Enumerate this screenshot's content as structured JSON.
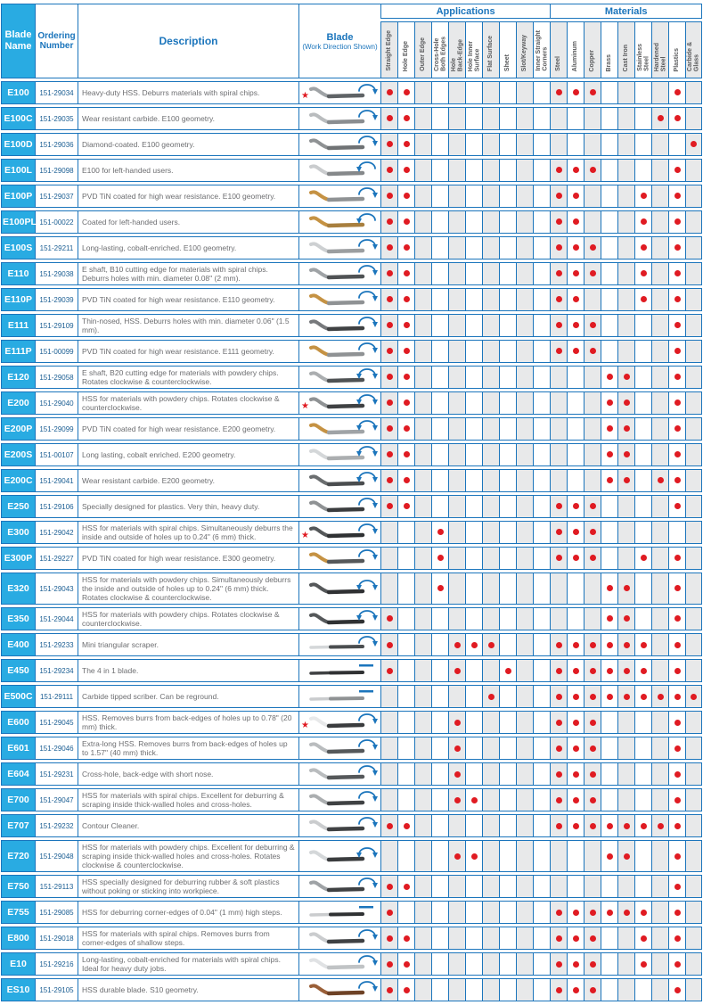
{
  "header": {
    "blade_name": "Blade\nName",
    "ordering_number": "Ordering\nNumber",
    "description": "Description",
    "blade": "Blade",
    "blade_subtitle": "(Work Direction Shown)",
    "applications_label": "Applications",
    "materials_label": "Materials",
    "application_columns": [
      "Straight Edge",
      "Hole Edge",
      "Outer Edge",
      "Cross-Hole\nBoth Edges",
      "Hole\nBack-Edge",
      "Hole Inner\nSurface",
      "Flat Surface",
      "Sheet",
      "Slot/Keyway",
      "Inner Straight\nCorners"
    ],
    "material_columns": [
      "Steel",
      "Aluminum",
      "Copper",
      "Brass",
      "Cast Iron",
      "Stainless\nSteel",
      "Hardened\nSteel",
      "Plastics",
      "Carbide &\nGlass"
    ]
  },
  "colors": {
    "grid_blue": "#1b75bc",
    "name_cyan": "#29abe2",
    "dot_red": "#e01b22",
    "star_red": "#e01b22",
    "column_shade": "#e8e9ea",
    "description_gray": "#6d6e71"
  },
  "legend": {
    "star_meaning": "marker-star",
    "arrow_meaning": "work-direction-arrow"
  },
  "rows": [
    {
      "name": "E100",
      "order": "151-29034",
      "desc": "Heavy-duty HSS. Deburrs materials with spiral chips.",
      "star": true,
      "arrow": "ccw",
      "shape": "curve",
      "tip": "#9fa3a6",
      "shaft": "#5f6366",
      "dots": [
        1,
        2,
        11,
        12,
        13,
        18
      ]
    },
    {
      "name": "E100C",
      "order": "151-29035",
      "desc": "Wear resistant carbide. E100 geometry.",
      "star": false,
      "arrow": "ccw",
      "shape": "curve",
      "tip": "#b9bcbe",
      "shaft": "#8a8d90",
      "dots": [
        1,
        2,
        17,
        18
      ]
    },
    {
      "name": "E100D",
      "order": "151-29036",
      "desc": "Diamond-coated. E100 geometry.",
      "star": false,
      "arrow": "ccw",
      "shape": "curve",
      "tip": "#8f9294",
      "shaft": "#6f7274",
      "dots": [
        1,
        2,
        19
      ]
    },
    {
      "name": "E100L",
      "order": "151-29098",
      "desc": "E100 for left-handed users.",
      "star": false,
      "arrow": "cw",
      "shape": "curve",
      "tip": "#caccce",
      "shaft": "#85888a",
      "dots": [
        1,
        2,
        11,
        12,
        13,
        18
      ]
    },
    {
      "name": "E100P",
      "order": "151-29037",
      "desc": "PVD TiN coated for high wear resistance. E100 geometry.",
      "star": false,
      "arrow": "ccw",
      "shape": "curve",
      "tip": "#c59243",
      "shaft": "#8f9294",
      "dots": [
        1,
        2,
        11,
        12,
        16,
        18
      ]
    },
    {
      "name": "E100PL",
      "order": "151-00022",
      "desc": "Coated for left-handed users.",
      "star": false,
      "arrow": "cw",
      "shape": "curve",
      "tip": "#c59243",
      "shaft": "#a87f3e",
      "dots": [
        1,
        2,
        11,
        12,
        16,
        18
      ]
    },
    {
      "name": "E100S",
      "order": "151-29211",
      "desc": "Long-lasting, cobalt-enriched. E100 geometry.",
      "star": false,
      "arrow": "ccw",
      "shape": "curve",
      "tip": "#cdd0d2",
      "shaft": "#9b9ea0",
      "dots": [
        1,
        2,
        11,
        12,
        13,
        16,
        18
      ]
    },
    {
      "name": "E110",
      "order": "151-29038",
      "desc": "E shaft, B10 cutting edge for materials with spiral chips. Deburrs holes with min. diameter 0.08\" (2 mm).",
      "star": false,
      "arrow": "ccw",
      "shape": "curve",
      "tip": "#9fa3a6",
      "shaft": "#4f5254",
      "dots": [
        1,
        2,
        11,
        12,
        13,
        16,
        18
      ]
    },
    {
      "name": "E110P",
      "order": "151-29039",
      "desc": "PVD TiN coated for high wear resistance. E110 geometry.",
      "star": false,
      "arrow": "ccw",
      "shape": "curve",
      "tip": "#c59243",
      "shaft": "#8f9294",
      "dots": [
        1,
        2,
        11,
        12,
        16,
        18
      ]
    },
    {
      "name": "E111",
      "order": "151-29109",
      "desc": "Thin-nosed, HSS. Deburrs holes with min. diameter 0.06\" (1.5 mm).",
      "star": false,
      "arrow": "ccw",
      "shape": "curve",
      "tip": "#77797c",
      "shaft": "#3f4143",
      "dots": [
        1,
        2,
        11,
        12,
        13,
        18
      ]
    },
    {
      "name": "E111P",
      "order": "151-00099",
      "desc": "PVD TiN coated for high wear resistance. E111 geometry.",
      "star": false,
      "arrow": "ccw",
      "shape": "curve",
      "tip": "#c59243",
      "shaft": "#8f9294",
      "dots": [
        1,
        2,
        11,
        12,
        13,
        18
      ]
    },
    {
      "name": "E120",
      "order": "151-29058",
      "desc": "E shaft, B20 cutting edge for materials with powdery chips. Rotates clockwise & counterclockwise.",
      "star": false,
      "arrow": "both",
      "shape": "curve",
      "tip": "#abaeb0",
      "shaft": "#4f5254",
      "dots": [
        1,
        2,
        14,
        15,
        18
      ]
    },
    {
      "name": "E200",
      "order": "151-29040",
      "desc": "HSS for materials with powdery chips. Rotates clockwise & counterclockwise.",
      "star": true,
      "arrow": "both",
      "shape": "curve",
      "tip": "#8f9294",
      "shaft": "#3f4143",
      "dots": [
        1,
        2,
        14,
        15,
        18
      ]
    },
    {
      "name": "E200P",
      "order": "151-29099",
      "desc": "PVD TiN coated for high wear resistance. E200 geometry.",
      "star": false,
      "arrow": "both",
      "shape": "curve",
      "tip": "#c59243",
      "shaft": "#9fa3a6",
      "dots": [
        1,
        2,
        14,
        15,
        18
      ]
    },
    {
      "name": "E200S",
      "order": "151-00107",
      "desc": "Long lasting, cobalt enriched. E200 geometry.",
      "star": false,
      "arrow": "both",
      "shape": "curve",
      "tip": "#d4d7d9",
      "shaft": "#abaeb0",
      "dots": [
        1,
        2,
        14,
        15,
        18
      ]
    },
    {
      "name": "E200C",
      "order": "151-29041",
      "desc": "Wear resistant carbide. E200 geometry.",
      "star": false,
      "arrow": "both",
      "shape": "curve",
      "tip": "#6b6e70",
      "shaft": "#4a4d4f",
      "dots": [
        1,
        2,
        14,
        15,
        17,
        18
      ]
    },
    {
      "name": "E250",
      "order": "151-29106",
      "desc": "Specially designed for plastics. Very thin, heavy duty.",
      "star": false,
      "arrow": "ccw",
      "shape": "curve",
      "tip": "#8f9294",
      "shaft": "#3a3c3e",
      "dots": [
        1,
        2,
        11,
        12,
        13,
        18
      ]
    },
    {
      "name": "E300",
      "order": "151-29042",
      "desc": "HSS for materials with spiral chips. Simultaneously deburrs the inside and outside of holes up to 0.24\" (6 mm) thick.",
      "star": true,
      "arrow": "ccw",
      "shape": "curve",
      "tip": "#55585a",
      "shaft": "#2f3133",
      "dots": [
        4,
        11,
        12,
        13
      ]
    },
    {
      "name": "E300P",
      "order": "151-29227",
      "desc": "PVD TiN coated for high wear resistance. E300 geometry.",
      "star": false,
      "arrow": "ccw",
      "shape": "curve",
      "tip": "#c59243",
      "shaft": "#55585a",
      "dots": [
        4,
        11,
        12,
        13,
        16,
        18
      ]
    },
    {
      "name": "E320",
      "order": "151-29043",
      "desc": "HSS for materials with powdery chips. Simultaneously deburrs the inside and outside of holes up to 0.24\" (6 mm) thick. Rotates clockwise & counterclockwise.",
      "star": false,
      "arrow": "both",
      "shape": "curve",
      "tip": "#55585a",
      "shaft": "#2f3133",
      "dots": [
        4,
        14,
        15,
        18
      ]
    },
    {
      "name": "E350",
      "order": "151-29044",
      "desc": "HSS for materials with powdery chips. Rotates clockwise & counterclockwise.",
      "star": false,
      "arrow": "both",
      "shape": "curve",
      "tip": "#55585a",
      "shaft": "#2f3133",
      "dots": [
        1,
        14,
        15,
        18
      ]
    },
    {
      "name": "E400",
      "order": "151-29233",
      "desc": "Mini triangular scraper.",
      "star": false,
      "arrow": "ccw",
      "shape": "straight",
      "tip": "#d4d7d9",
      "shaft": "#4a4d4f",
      "dots": [
        1,
        5,
        6,
        7,
        11,
        12,
        13,
        14,
        15,
        16,
        18
      ]
    },
    {
      "name": "E450",
      "order": "151-29234",
      "desc": "The 4 in 1 blade.",
      "star": false,
      "arrow": "dash",
      "shape": "straight",
      "tip": "#3f4143",
      "shaft": "#2f3133",
      "dots": [
        1,
        5,
        8,
        11,
        12,
        13,
        14,
        15,
        16,
        18
      ]
    },
    {
      "name": "E500C",
      "order": "151-29111",
      "desc": "Carbide tipped scriber. Can be reground.",
      "star": false,
      "arrow": "dash",
      "shape": "straight",
      "tip": "#caccce",
      "shaft": "#8f9294",
      "dots": [
        7,
        11,
        12,
        13,
        14,
        15,
        16,
        17,
        18,
        19
      ]
    },
    {
      "name": "E600",
      "order": "151-29045",
      "desc": "HSS. Removes burrs from back-edges of holes up to 0.78\" (20 mm) thick.",
      "star": true,
      "arrow": "ccw",
      "shape": "curve",
      "tip": "#e8e9ea",
      "shaft": "#3a3c3e",
      "dots": [
        5,
        11,
        12,
        13,
        18
      ]
    },
    {
      "name": "E601",
      "order": "151-29046",
      "desc": "Extra-long HSS. Removes burrs from back-edges of holes up to 1.57\" (40 mm) thick.",
      "star": false,
      "arrow": "ccw",
      "shape": "curve",
      "tip": "#b9bcbe",
      "shaft": "#55585a",
      "dots": [
        5,
        11,
        12,
        13,
        18
      ]
    },
    {
      "name": "E604",
      "order": "151-29231",
      "desc": "Cross-hole, back-edge with short nose.",
      "star": false,
      "arrow": "ccw",
      "shape": "curve",
      "tip": "#b9bcbe",
      "shaft": "#55585a",
      "dots": [
        5,
        11,
        12,
        13,
        18
      ]
    },
    {
      "name": "E700",
      "order": "151-29047",
      "desc": "HSS for materials with spiral chips. Excellent for deburring & scraping inside thick-walled holes and cross-holes.",
      "star": false,
      "arrow": "ccw",
      "shape": "curve",
      "tip": "#abaeb0",
      "shaft": "#3f4143",
      "dots": [
        5,
        6,
        11,
        12,
        13,
        18
      ]
    },
    {
      "name": "E707",
      "order": "151-29232",
      "desc": "Contour Cleaner.",
      "star": false,
      "arrow": "ccw",
      "shape": "curve",
      "tip": "#caccce",
      "shaft": "#3f4143",
      "dots": [
        1,
        2,
        11,
        12,
        13,
        14,
        15,
        16,
        17,
        18
      ]
    },
    {
      "name": "E720",
      "order": "151-29048",
      "desc": "HSS for materials with powdery chips. Excellent for deburring & scraping inside thick-walled holes and cross-holes. Rotates clockwise & counterclockwise.",
      "star": false,
      "arrow": "both",
      "shape": "curve",
      "tip": "#d4d7d9",
      "shaft": "#3a3c3e",
      "dots": [
        5,
        6,
        14,
        15,
        18
      ]
    },
    {
      "name": "E750",
      "order": "151-29113",
      "desc": "HSS specially designed for deburring rubber & soft plastics without poking or sticking into workpiece.",
      "star": false,
      "arrow": "ccw",
      "shape": "curve",
      "tip": "#9fa3a6",
      "shaft": "#3f4143",
      "dots": [
        1,
        2,
        18
      ]
    },
    {
      "name": "E755",
      "order": "151-29085",
      "desc": "HSS for deburring corner-edges of 0.04\" (1 mm) high steps.",
      "star": false,
      "arrow": "dash",
      "shape": "straight",
      "tip": "#caccce",
      "shaft": "#2f3133",
      "dots": [
        1,
        11,
        12,
        13,
        14,
        15,
        16,
        18
      ]
    },
    {
      "name": "E800",
      "order": "151-29018",
      "desc": "HSS for materials with spiral chips. Removes burrs from corner-edges of shallow steps.",
      "star": false,
      "arrow": "ccw",
      "shape": "curve",
      "tip": "#caccce",
      "shaft": "#3f4143",
      "dots": [
        1,
        2,
        11,
        12,
        13,
        16,
        18
      ]
    },
    {
      "name": "E10",
      "order": "151-29216",
      "desc": "Long-lasting, cobalt-enriched for materials with spiral chips. Ideal for heavy duty jobs.",
      "star": false,
      "arrow": "ccw",
      "shape": "curve",
      "tip": "#e0e2e4",
      "shaft": "#c0c3c5",
      "dots": [
        1,
        2,
        11,
        12,
        13,
        16,
        18
      ]
    },
    {
      "name": "ES10",
      "order": "151-29105",
      "desc": "HSS durable blade. S10 geometry.",
      "star": false,
      "arrow": "ccw",
      "shape": "curve",
      "tip": "#9a5f38",
      "shaft": "#6e4226",
      "dots": [
        1,
        2,
        11,
        12,
        13,
        18
      ]
    }
  ]
}
